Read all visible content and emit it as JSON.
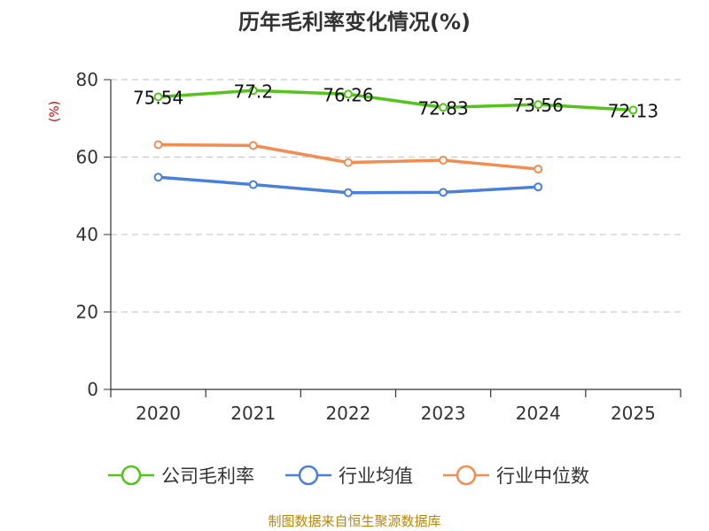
{
  "chart_data": {
    "type": "line",
    "title": "历年毛利率变化情况(%)",
    "ylabel": "(%)",
    "xlabel": "",
    "categories": [
      "2020",
      "2021",
      "2022",
      "2023",
      "2024",
      "2025"
    ],
    "ylim": [
      0,
      80
    ],
    "yticks": [
      0,
      20,
      40,
      60,
      80
    ],
    "grid": true,
    "legend_position": "bottom",
    "series": [
      {
        "name": "公司毛利率",
        "color": "#52c41a",
        "values": [
          75.54,
          77.2,
          76.26,
          72.83,
          73.56,
          72.13
        ],
        "labels": [
          "75.54",
          "77.2",
          "76.26",
          "72.83",
          "73.56",
          "72.13"
        ]
      },
      {
        "name": "行业均值",
        "color": "#4a7fdb",
        "values": [
          54.8,
          52.9,
          50.8,
          50.9,
          52.3,
          null
        ]
      },
      {
        "name": "行业中位数",
        "color": "#f28c50",
        "values": [
          63.2,
          63.0,
          58.6,
          59.2,
          56.9,
          null
        ]
      }
    ]
  },
  "source_text": "制图数据来自恒生聚源数据库"
}
